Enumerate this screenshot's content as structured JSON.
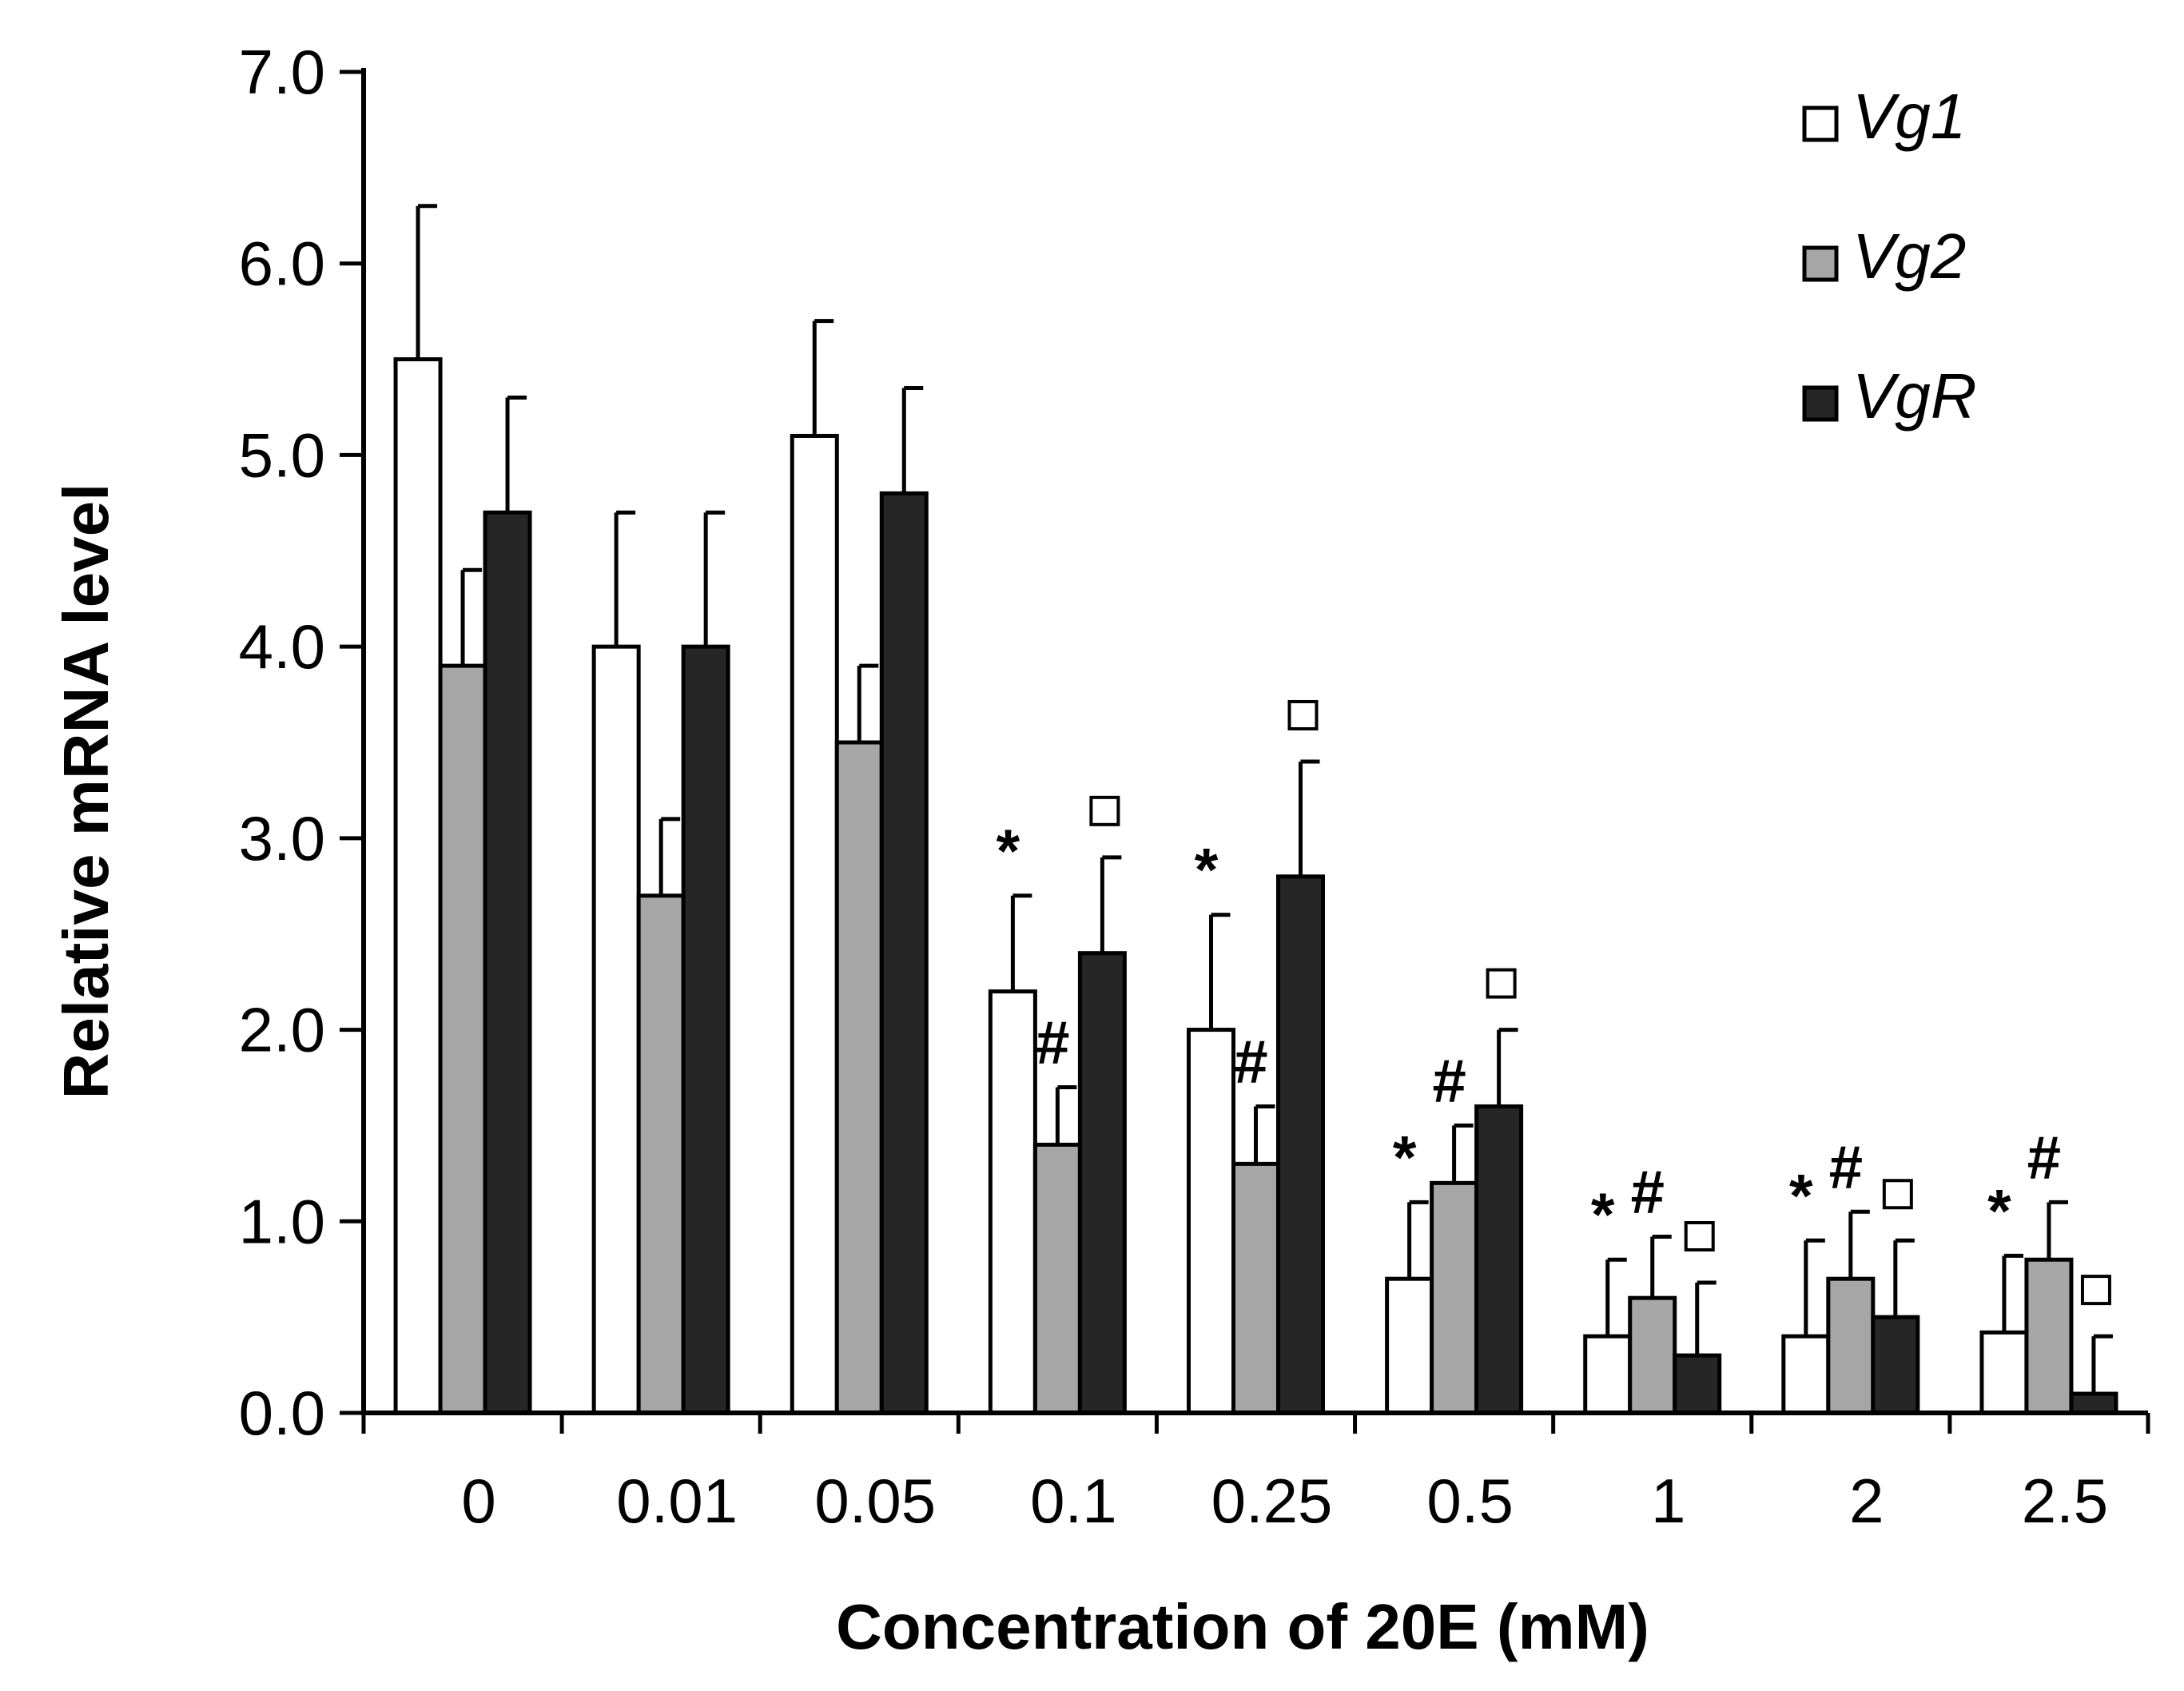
{
  "chart_data": {
    "type": "bar",
    "xlabel": "Concentration of 20E (mM)",
    "ylabel": "Relative mRNA level",
    "ylim": [
      0,
      7
    ],
    "yticks": [
      "0.0",
      "1.0",
      "2.0",
      "3.0",
      "4.0",
      "5.0",
      "6.0",
      "7.0"
    ],
    "categories": [
      "0",
      "0.01",
      "0.05",
      "0.1",
      "0.25",
      "0.5",
      "1",
      "2",
      "2.5"
    ],
    "legend_position": "top-right",
    "grid": false,
    "series": [
      {
        "name": "Vg1",
        "color": "#ffffff",
        "values": [
          5.5,
          4.0,
          5.1,
          2.2,
          2.0,
          0.7,
          0.4,
          0.4,
          0.42
        ],
        "errors": [
          0.8,
          0.7,
          0.6,
          0.5,
          0.6,
          0.4,
          0.4,
          0.5,
          0.4
        ],
        "marks": [
          "",
          "",
          "",
          "*",
          "*",
          "*",
          "*",
          "*",
          "*"
        ]
      },
      {
        "name": "Vg2",
        "color": "#a6a6a6",
        "values": [
          3.9,
          2.7,
          3.5,
          1.4,
          1.3,
          1.2,
          0.6,
          0.7,
          0.8
        ],
        "errors": [
          0.5,
          0.4,
          0.4,
          0.3,
          0.3,
          0.3,
          0.32,
          0.35,
          0.3
        ],
        "marks": [
          "",
          "",
          "",
          "#",
          "#",
          "#",
          "#",
          "#",
          "#"
        ]
      },
      {
        "name": "VgR",
        "color": "#262626",
        "values": [
          4.7,
          4.0,
          4.8,
          2.4,
          2.8,
          1.6,
          0.3,
          0.5,
          0.1
        ],
        "errors": [
          0.6,
          0.7,
          0.55,
          0.5,
          0.6,
          0.4,
          0.38,
          0.4,
          0.3
        ],
        "marks": [
          "",
          "",
          "",
          "□",
          "□",
          "□",
          "□",
          "□",
          "□"
        ]
      }
    ]
  }
}
